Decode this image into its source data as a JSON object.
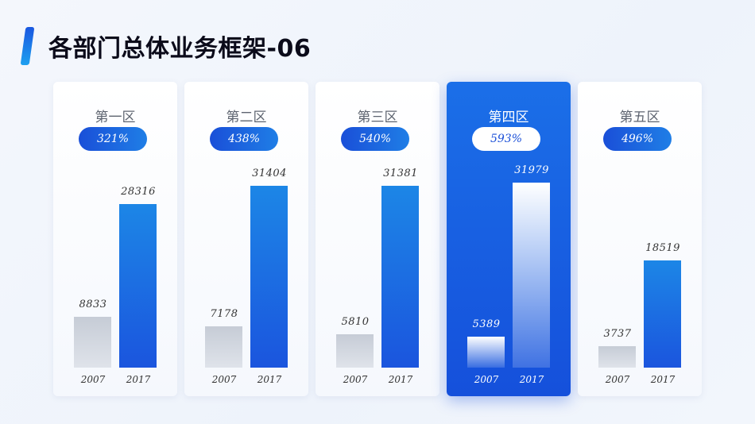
{
  "page": {
    "title": "各部门总体业务框架-06"
  },
  "chart_data": {
    "type": "bar",
    "x_categories": [
      "2007",
      "2017"
    ],
    "y_range": [
      0,
      31979
    ],
    "panels": [
      {
        "name": "第一区",
        "growth": "321%",
        "values": [
          8833,
          28316
        ],
        "highlight": false
      },
      {
        "name": "第二区",
        "growth": "438%",
        "values": [
          7178,
          31404
        ],
        "highlight": false
      },
      {
        "name": "第三区",
        "growth": "540%",
        "values": [
          5810,
          31381
        ],
        "highlight": false
      },
      {
        "name": "第四区",
        "growth": "593%",
        "values": [
          5389,
          31979
        ],
        "highlight": true
      },
      {
        "name": "第五区",
        "growth": "496%",
        "values": [
          3737,
          18519
        ],
        "highlight": false
      }
    ],
    "colors": {
      "bar_2007": "#c6ccd6",
      "bar_2017": "#1b6fe8",
      "highlight_panel": "#1b62e4"
    }
  }
}
